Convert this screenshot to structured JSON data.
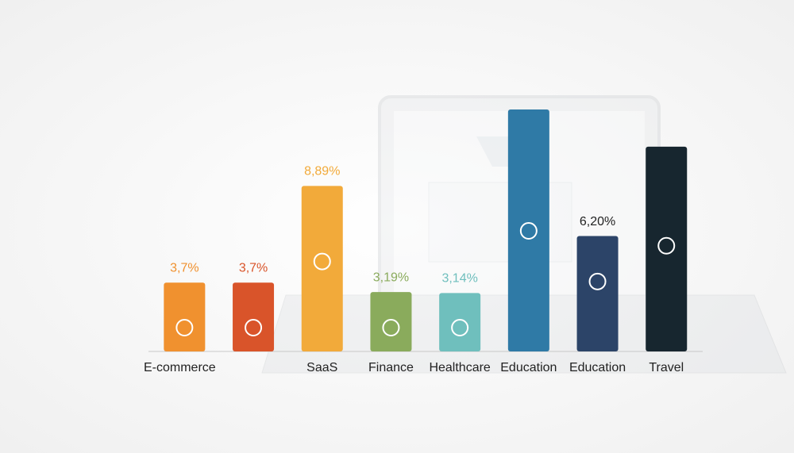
{
  "chart_data": {
    "type": "bar",
    "categories": [
      "E-commerce",
      null,
      "SaaS",
      "Finance",
      "Healthcare",
      "Education",
      "Education",
      "Travel"
    ],
    "values": [
      3.7,
      3.7,
      8.89,
      3.19,
      3.14,
      13,
      6.2,
      11
    ],
    "value_labels": [
      "3,7%",
      "3,7%",
      "8,89%",
      "3,19%",
      "3,14%",
      null,
      "6,20%",
      null
    ],
    "colors": [
      "#f0912f",
      "#d9542a",
      "#f2aa3a",
      "#8aab5c",
      "#6fbfbd",
      "#2f7aa6",
      "#2c4468",
      "#17262f"
    ]
  }
}
